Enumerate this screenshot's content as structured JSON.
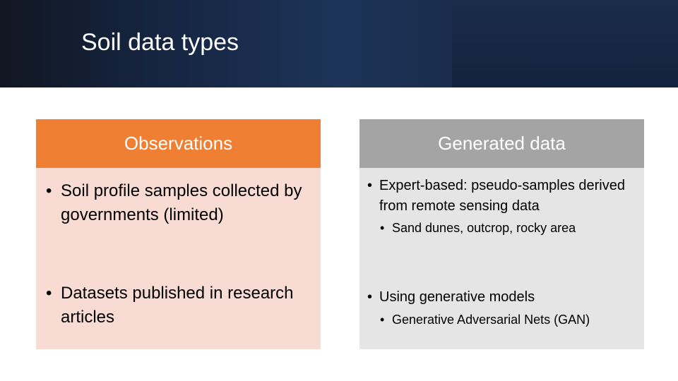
{
  "slide": {
    "title": "Soil data types"
  },
  "observations": {
    "heading": "Observations",
    "bullets": [
      "Soil profile samples collected by governments (limited)",
      "Datasets published in research articles"
    ]
  },
  "generated": {
    "heading": "Generated data",
    "bullets": [
      {
        "text": "Expert-based: pseudo-samples derived from remote sensing data",
        "sub": "Sand dunes, outcrop, rocky area"
      },
      {
        "text": "Using generative models",
        "sub": "Generative Adversarial Nets (GAN)"
      }
    ]
  },
  "colors": {
    "header_bg": "#1d3458",
    "observations_header": "#ee7f33",
    "observations_body": "#f8dcd3",
    "generated_header": "#a4a4a4",
    "generated_body": "#e5e5e5"
  }
}
